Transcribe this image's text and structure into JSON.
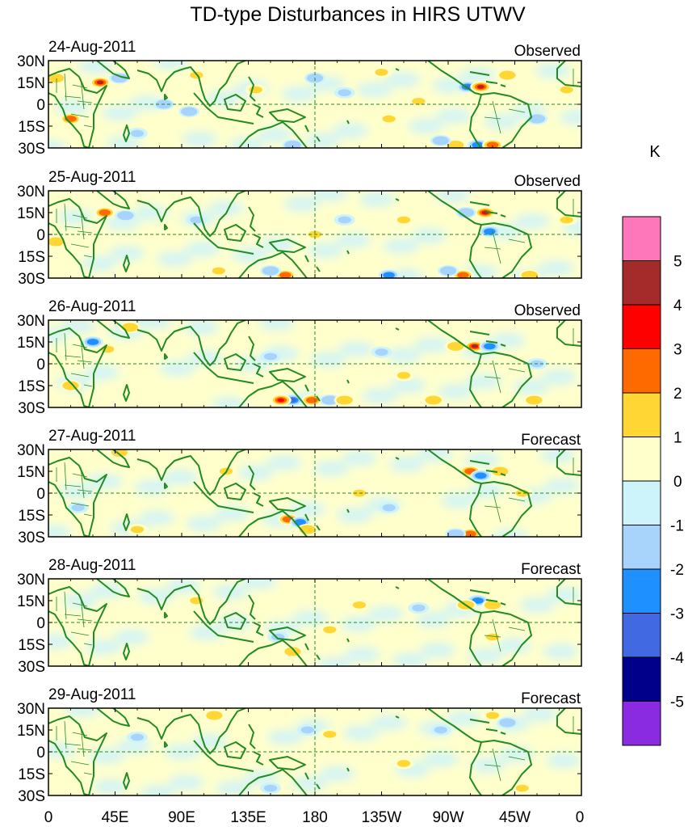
{
  "chart_data": {
    "type": "heatmap",
    "title": "TD-type Disturbances in HIRS UTWV",
    "units": "K",
    "x_ticks": [
      "0",
      "45E",
      "90E",
      "135E",
      "180",
      "135W",
      "90W",
      "45W",
      "0"
    ],
    "y_ticks": [
      "30N",
      "15N",
      "0",
      "15S",
      "30S"
    ],
    "colorbar": {
      "ticks": [
        "5",
        "4",
        "3",
        "2",
        "1",
        "0",
        "-1",
        "-2",
        "-3",
        "-4",
        "-5"
      ],
      "colors": [
        "#ff77bb",
        "#a52a2a",
        "#ff0000",
        "#ff6a00",
        "#ffd633",
        "#ffffcc",
        "#cdf3fb",
        "#a8d3fa",
        "#1e90ff",
        "#4169e1",
        "#00008b",
        "#8a2be2"
      ]
    },
    "panels": [
      {
        "date": "24-Aug-2011",
        "kind": "Observed",
        "anomalies": [
          {
            "lon": 35,
            "lat": 15,
            "value": 4.5
          },
          {
            "lon": 15,
            "lat": -10,
            "value": 3
          },
          {
            "lon": 5,
            "lat": 18,
            "value": 2
          },
          {
            "lon": 48,
            "lat": 18,
            "value": -2
          },
          {
            "lon": 283,
            "lat": 12,
            "value": -3.5
          },
          {
            "lon": 292,
            "lat": 12,
            "value": 4.5
          },
          {
            "lon": 310,
            "lat": 20,
            "value": 2
          },
          {
            "lon": 290,
            "lat": -28,
            "value": -3
          },
          {
            "lon": 300,
            "lat": -28,
            "value": 3
          },
          {
            "lon": 275,
            "lat": -28,
            "value": 2
          },
          {
            "lon": 165,
            "lat": -28,
            "value": -2
          },
          {
            "lon": 265,
            "lat": -25,
            "value": -2
          },
          {
            "lon": 78,
            "lat": 0,
            "value": -2
          },
          {
            "lon": 95,
            "lat": -5,
            "value": -2
          },
          {
            "lon": 230,
            "lat": -10,
            "value": 1.5
          },
          {
            "lon": 180,
            "lat": 18,
            "value": -2
          },
          {
            "lon": 225,
            "lat": 22,
            "value": 1.5
          },
          {
            "lon": 200,
            "lat": 8,
            "value": -1.5
          },
          {
            "lon": 100,
            "lat": 20,
            "value": 1.5
          },
          {
            "lon": 140,
            "lat": 10,
            "value": 1.2
          },
          {
            "lon": 330,
            "lat": -10,
            "value": -2
          },
          {
            "lon": 350,
            "lat": 10,
            "value": 1.5
          },
          {
            "lon": 250,
            "lat": 2,
            "value": 1.5
          },
          {
            "lon": 60,
            "lat": -20,
            "value": -1.5
          }
        ]
      },
      {
        "date": "25-Aug-2011",
        "kind": "Observed",
        "anomalies": [
          {
            "lon": 38,
            "lat": 15,
            "value": 3
          },
          {
            "lon": 52,
            "lat": 13,
            "value": -2
          },
          {
            "lon": 5,
            "lat": -5,
            "value": 2
          },
          {
            "lon": 295,
            "lat": 15,
            "value": 4.5
          },
          {
            "lon": 298,
            "lat": 2,
            "value": -3
          },
          {
            "lon": 282,
            "lat": 15,
            "value": -2
          },
          {
            "lon": 230,
            "lat": -28,
            "value": -3
          },
          {
            "lon": 160,
            "lat": -28,
            "value": 3
          },
          {
            "lon": 150,
            "lat": -25,
            "value": -2
          },
          {
            "lon": 280,
            "lat": -28,
            "value": 3
          },
          {
            "lon": 270,
            "lat": -25,
            "value": -2
          },
          {
            "lon": 325,
            "lat": -28,
            "value": 2
          },
          {
            "lon": 200,
            "lat": 10,
            "value": -1.5
          },
          {
            "lon": 240,
            "lat": 10,
            "value": 1.5
          },
          {
            "lon": 100,
            "lat": 10,
            "value": -1.5
          },
          {
            "lon": 115,
            "lat": -25,
            "value": 1.2
          },
          {
            "lon": 180,
            "lat": 0,
            "value": 1.2
          },
          {
            "lon": 350,
            "lat": 10,
            "value": 1.5
          }
        ]
      },
      {
        "date": "26-Aug-2011",
        "kind": "Observed",
        "anomalies": [
          {
            "lon": 30,
            "lat": 15,
            "value": -3
          },
          {
            "lon": 40,
            "lat": 10,
            "value": 1.5
          },
          {
            "lon": 288,
            "lat": 12,
            "value": 4.5
          },
          {
            "lon": 298,
            "lat": 12,
            "value": -3
          },
          {
            "lon": 275,
            "lat": 12,
            "value": 2
          },
          {
            "lon": 165,
            "lat": -25,
            "value": -4
          },
          {
            "lon": 157,
            "lat": -25,
            "value": 4
          },
          {
            "lon": 178,
            "lat": -25,
            "value": 3
          },
          {
            "lon": 190,
            "lat": -25,
            "value": -2
          },
          {
            "lon": 200,
            "lat": -25,
            "value": 2
          },
          {
            "lon": 260,
            "lat": -25,
            "value": 2
          },
          {
            "lon": 328,
            "lat": -25,
            "value": 2
          },
          {
            "lon": 55,
            "lat": 25,
            "value": 2
          },
          {
            "lon": 150,
            "lat": 5,
            "value": -1.5
          },
          {
            "lon": 225,
            "lat": 8,
            "value": -1.5
          },
          {
            "lon": 240,
            "lat": -8,
            "value": 1.5
          },
          {
            "lon": 15,
            "lat": -15,
            "value": 2
          },
          {
            "lon": 330,
            "lat": 0,
            "value": -1.5
          }
        ]
      },
      {
        "date": "27-Aug-2011",
        "kind": "Forecast",
        "anomalies": [
          {
            "lon": 285,
            "lat": 15,
            "value": 3
          },
          {
            "lon": 292,
            "lat": 12,
            "value": -3
          },
          {
            "lon": 305,
            "lat": 15,
            "value": 2
          },
          {
            "lon": 162,
            "lat": -18,
            "value": 3
          },
          {
            "lon": 170,
            "lat": -20,
            "value": -3
          },
          {
            "lon": 175,
            "lat": -25,
            "value": 2
          },
          {
            "lon": 285,
            "lat": -28,
            "value": 3
          },
          {
            "lon": 275,
            "lat": -28,
            "value": -2
          },
          {
            "lon": 320,
            "lat": 0,
            "value": 1.5
          },
          {
            "lon": 48,
            "lat": 28,
            "value": 2
          },
          {
            "lon": 210,
            "lat": 0,
            "value": 1.5
          },
          {
            "lon": 230,
            "lat": -10,
            "value": -1.5
          },
          {
            "lon": 120,
            "lat": 15,
            "value": 1.2
          },
          {
            "lon": 20,
            "lat": -10,
            "value": -1.5
          },
          {
            "lon": 60,
            "lat": -25,
            "value": 1.2
          }
        ]
      },
      {
        "date": "28-Aug-2011",
        "kind": "Forecast",
        "anomalies": [
          {
            "lon": 290,
            "lat": 15,
            "value": -3
          },
          {
            "lon": 282,
            "lat": 12,
            "value": 2
          },
          {
            "lon": 300,
            "lat": 12,
            "value": 2
          },
          {
            "lon": 165,
            "lat": -20,
            "value": 2
          },
          {
            "lon": 155,
            "lat": -10,
            "value": -1.5
          },
          {
            "lon": 190,
            "lat": -5,
            "value": 1.5
          },
          {
            "lon": 300,
            "lat": -10,
            "value": 1.5
          },
          {
            "lon": 250,
            "lat": 10,
            "value": -1.2
          },
          {
            "lon": 100,
            "lat": 15,
            "value": 1.2
          },
          {
            "lon": 210,
            "lat": 12,
            "value": 1.2
          }
        ]
      },
      {
        "date": "29-Aug-2011",
        "kind": "Forecast",
        "anomalies": [
          {
            "lon": 112,
            "lat": 25,
            "value": 2
          },
          {
            "lon": 175,
            "lat": 15,
            "value": -1.5
          },
          {
            "lon": 190,
            "lat": 12,
            "value": 1.5
          },
          {
            "lon": 240,
            "lat": -8,
            "value": 1.5
          },
          {
            "lon": 265,
            "lat": 15,
            "value": -1.5
          },
          {
            "lon": 300,
            "lat": 25,
            "value": 1.2
          },
          {
            "lon": 310,
            "lat": 20,
            "value": -2
          },
          {
            "lon": 320,
            "lat": -25,
            "value": 1.2
          },
          {
            "lon": 150,
            "lat": -25,
            "value": -1.2
          },
          {
            "lon": 60,
            "lat": 10,
            "value": -1.2
          }
        ]
      }
    ]
  }
}
